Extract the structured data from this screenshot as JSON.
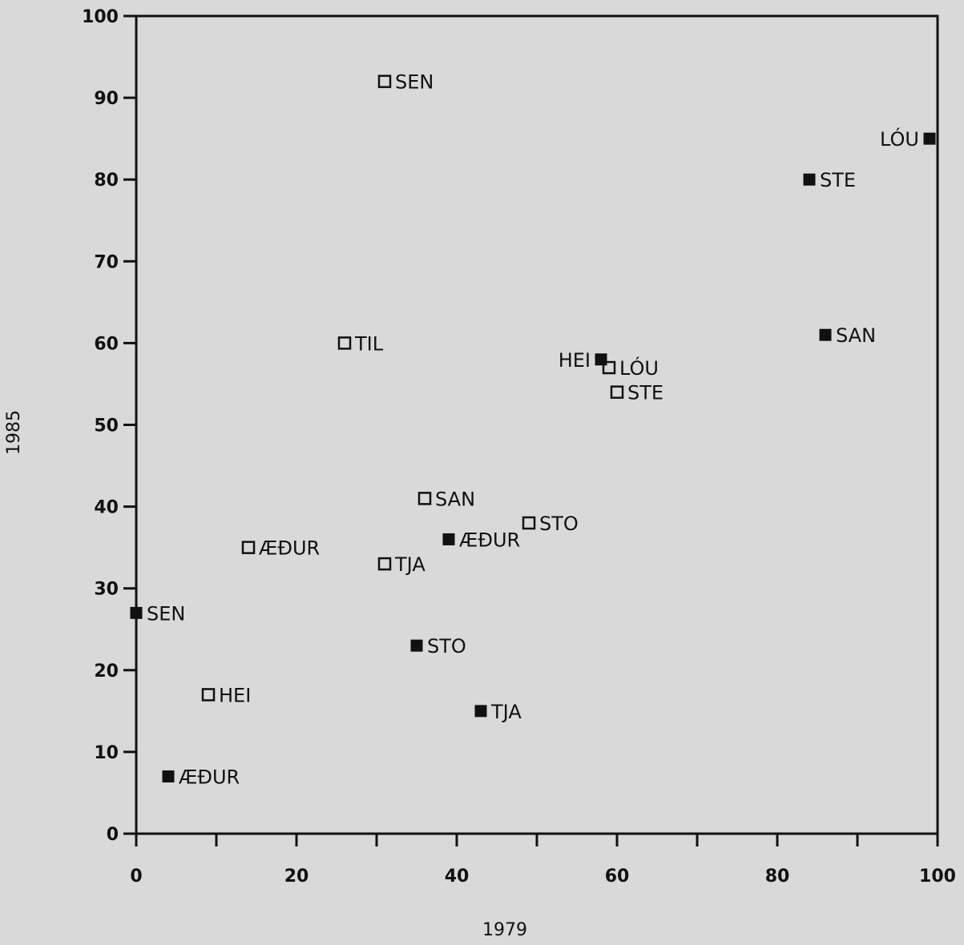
{
  "chart_data": {
    "type": "scatter",
    "title": "",
    "xlabel": "1979",
    "ylabel": "1985",
    "xlim": [
      0,
      100
    ],
    "ylim": [
      0,
      100
    ],
    "xticks": [
      0,
      20,
      40,
      60,
      80,
      100
    ],
    "yticks": [
      0,
      10,
      20,
      30,
      40,
      50,
      60,
      70,
      80,
      90,
      100
    ],
    "grid": false,
    "legend": "none",
    "series": [
      {
        "marker": "open-square",
        "color": "#111111",
        "points": [
          {
            "label": "SEN",
            "x": 31,
            "y": 92
          },
          {
            "label": "TIL",
            "x": 26,
            "y": 60
          },
          {
            "label": "LÓU",
            "x": 59,
            "y": 57
          },
          {
            "label": "STE",
            "x": 60,
            "y": 54
          },
          {
            "label": "SAN",
            "x": 36,
            "y": 41
          },
          {
            "label": "STO",
            "x": 49,
            "y": 38
          },
          {
            "label": "ÆÐUR",
            "x": 14,
            "y": 35
          },
          {
            "label": "TJA",
            "x": 31,
            "y": 33
          },
          {
            "label": "HEI",
            "x": 9,
            "y": 17
          }
        ]
      },
      {
        "marker": "filled-square",
        "color": "#111111",
        "points": [
          {
            "label": "LÓU",
            "x": 99,
            "y": 85
          },
          {
            "label": "STE",
            "x": 84,
            "y": 80
          },
          {
            "label": "SAN",
            "x": 86,
            "y": 61
          },
          {
            "label": "HEI",
            "x": 58,
            "y": 58
          },
          {
            "label": "ÆÐUR",
            "x": 39,
            "y": 36
          },
          {
            "label": "SEN",
            "x": 0,
            "y": 27
          },
          {
            "label": "STO",
            "x": 35,
            "y": 23
          },
          {
            "label": "TJA",
            "x": 43,
            "y": 15
          },
          {
            "label": "ÆÐUR",
            "x": 4,
            "y": 7
          }
        ]
      }
    ]
  }
}
